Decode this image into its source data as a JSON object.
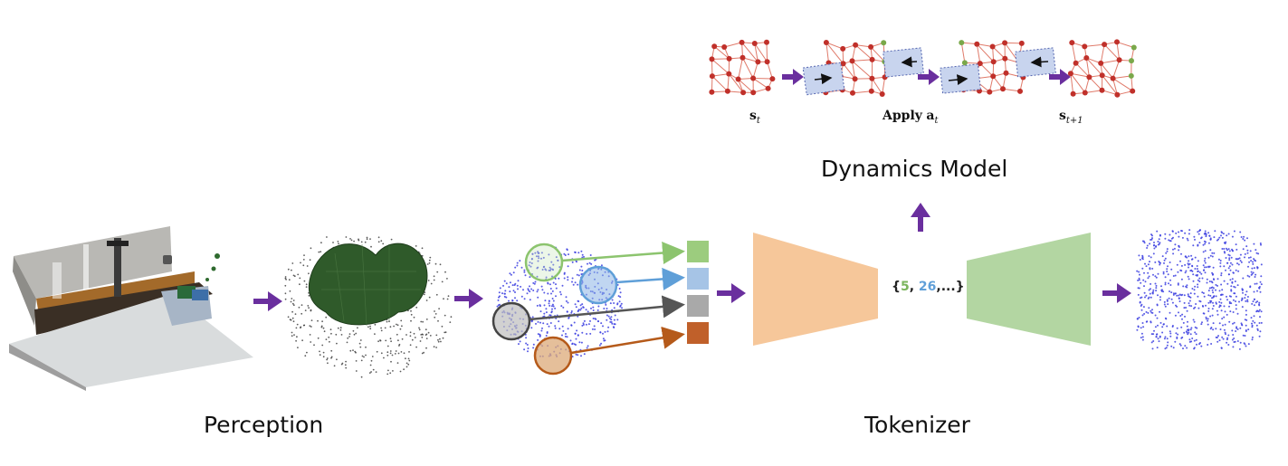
{
  "labels": {
    "perception": "Perception",
    "tokenizer": "Tokenizer",
    "dynamics_model": "Dynamics Model"
  },
  "graph_labels": {
    "s_t_main": "s",
    "s_t_sub": "t",
    "apply_word": "Apply",
    "apply_var": "a",
    "apply_sub": "t",
    "s_next_main": "s",
    "s_next_sub": "t+1"
  },
  "token_sequence": {
    "open": "{",
    "first": "5",
    "sep1": ", ",
    "second": "26",
    "rest": ",...}"
  },
  "colors": {
    "arrow": "#6a2f9e",
    "encoder": "#f6c79a",
    "decoder": "#b3d6a2",
    "points": "#3b3ee0",
    "token_green": "#9ccc7e",
    "token_blue": "#a6c4e6",
    "token_gray": "#a9a9a9",
    "token_orange": "#c0602a",
    "graph_edge": "#e07a6a",
    "graph_node": "#c0302a",
    "graph_node_active": "#7aa84a",
    "action_box": "#c8d4ee"
  }
}
